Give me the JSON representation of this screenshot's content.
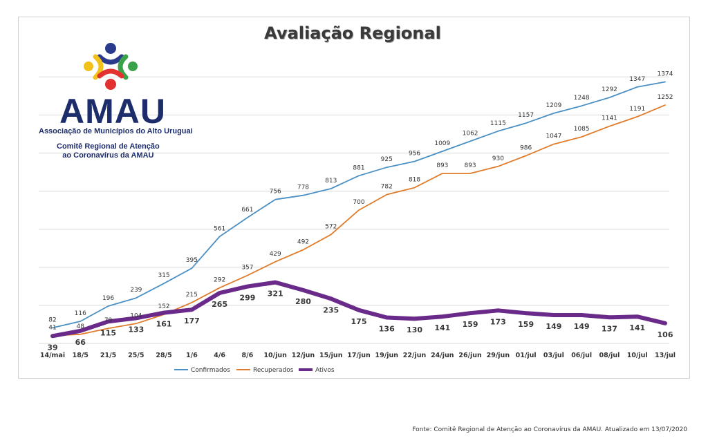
{
  "title": "Avaliação Regional",
  "logo": {
    "name": "AMAU",
    "subtitle": "Associação de Municípios do Alto Uruguai",
    "committee_line1": "Comitê Regional de Atenção",
    "committee_line2": "ao Coronavírus da AMAU"
  },
  "source": "Fonte: Comitê Regional de Atenção ao Coronavírus da AMAU. Atualizado em 13/07/2020",
  "colors": {
    "confirmados": "#4a90c4",
    "recuperados": "#e07b2a",
    "ativos": "#6a2a8a",
    "grid": "#d9d9d9"
  },
  "chart_data": {
    "type": "line",
    "title": "Avaliação Regional",
    "xlabel": "",
    "ylabel": "",
    "ylim": [
      0,
      1500
    ],
    "grid": true,
    "legend": "bottom",
    "categories": [
      "14/mai",
      "18/5",
      "21/5",
      "25/5",
      "28/5",
      "1/6",
      "4/6",
      "8/6",
      "10/jun",
      "12/jun",
      "15/jun",
      "17/jun",
      "19/jun",
      "22/jun",
      "24/jun",
      "26/jun",
      "29/jun",
      "01/jul",
      "03/jul",
      "06/jul",
      "08/jul",
      "10/jul",
      "13/jul"
    ],
    "series": [
      {
        "name": "Confirmados",
        "values": [
          82,
          116,
          196,
          239,
          315,
          395,
          561,
          661,
          756,
          778,
          813,
          881,
          925,
          956,
          1009,
          1062,
          1115,
          1157,
          1209,
          1248,
          1292,
          1347,
          1374
        ]
      },
      {
        "name": "Recuperados",
        "values": [
          41,
          48,
          79,
          104,
          152,
          215,
          292,
          357,
          429,
          492,
          572,
          700,
          782,
          818,
          893,
          893,
          930,
          986,
          1047,
          1085,
          1141,
          1191,
          1252
        ]
      },
      {
        "name": "Ativos",
        "values": [
          39,
          66,
          115,
          133,
          161,
          177,
          265,
          299,
          321,
          280,
          235,
          175,
          136,
          130,
          141,
          159,
          173,
          159,
          149,
          149,
          137,
          141,
          106
        ]
      }
    ]
  }
}
